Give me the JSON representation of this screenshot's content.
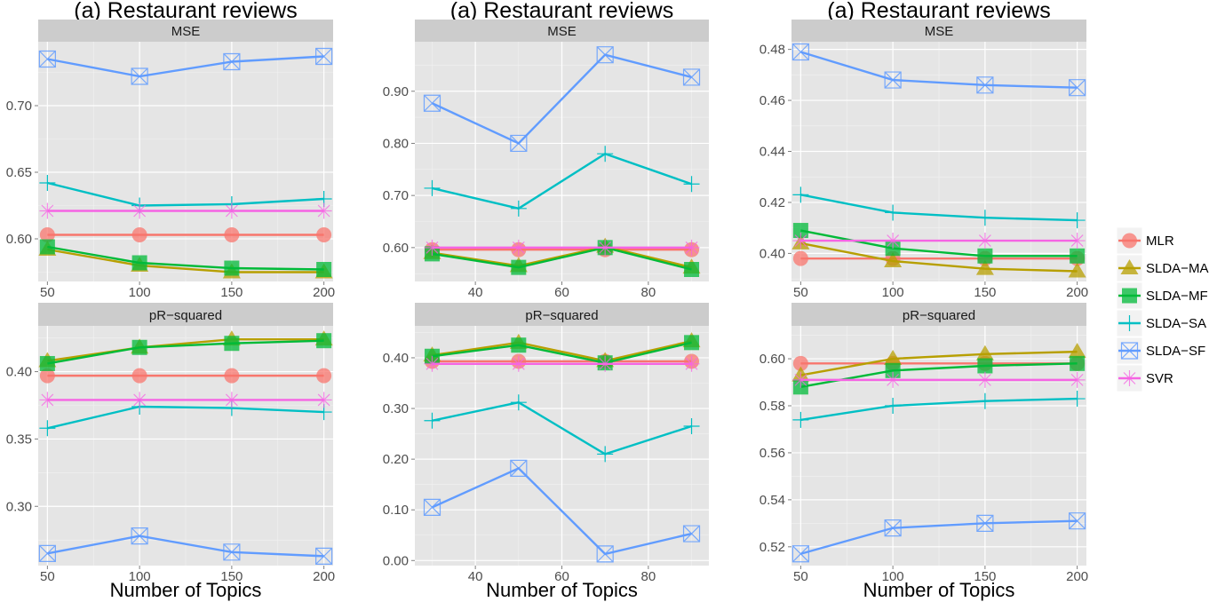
{
  "chart_data": [
    {
      "type": "line",
      "title": "(a) Restaurant reviews",
      "xlabel": "Number of Topics",
      "x": [
        50,
        100,
        150,
        200
      ],
      "xlim": [
        45,
        205
      ],
      "xticks": [
        50,
        100,
        150,
        200
      ],
      "panels": [
        {
          "strip": "MSE",
          "ylim": [
            0.568,
            0.748
          ],
          "yticks": [
            "0.60",
            "0.65",
            "0.70"
          ],
          "series": [
            {
              "name": "MLR",
              "values": [
                0.603,
                0.603,
                0.603,
                0.603
              ]
            },
            {
              "name": "SLDA−MA",
              "values": [
                0.592,
                0.58,
                0.575,
                0.575
              ]
            },
            {
              "name": "SLDA−MF",
              "values": [
                0.594,
                0.582,
                0.578,
                0.577
              ]
            },
            {
              "name": "SLDA−SA",
              "values": [
                0.642,
                0.625,
                0.626,
                0.63
              ]
            },
            {
              "name": "SLDA−SF",
              "values": [
                0.735,
                0.722,
                0.733,
                0.737
              ]
            },
            {
              "name": "SVR",
              "values": [
                0.621,
                0.621,
                0.621,
                0.621
              ]
            }
          ]
        },
        {
          "strip": "pR−squared",
          "ylim": [
            0.256,
            0.434
          ],
          "yticks": [
            "0.30",
            "0.35",
            "0.40"
          ],
          "series": [
            {
              "name": "MLR",
              "values": [
                0.397,
                0.397,
                0.397,
                0.397
              ]
            },
            {
              "name": "SLDA−MA",
              "values": [
                0.408,
                0.418,
                0.424,
                0.424
              ]
            },
            {
              "name": "SLDA−MF",
              "values": [
                0.406,
                0.418,
                0.421,
                0.423
              ]
            },
            {
              "name": "SLDA−SA",
              "values": [
                0.358,
                0.374,
                0.373,
                0.37
              ]
            },
            {
              "name": "SLDA−SF",
              "values": [
                0.265,
                0.278,
                0.266,
                0.263
              ]
            },
            {
              "name": "SVR",
              "values": [
                0.379,
                0.379,
                0.379,
                0.379
              ]
            }
          ]
        }
      ]
    },
    {
      "type": "line",
      "title": "(a) Restaurant reviews",
      "xlabel": "Number of Topics",
      "x": [
        30,
        50,
        70,
        90
      ],
      "xlim": [
        26,
        94
      ],
      "xticks": [
        40,
        60,
        80
      ],
      "panels": [
        {
          "strip": "MSE",
          "ylim": [
            0.535,
            0.995
          ],
          "yticks": [
            "0.60",
            "0.70",
            "0.80",
            "0.90"
          ],
          "series": [
            {
              "name": "MLR",
              "values": [
                0.596,
                0.596,
                0.596,
                0.596
              ]
            },
            {
              "name": "SLDA−MA",
              "values": [
                0.59,
                0.565,
                0.602,
                0.562
              ]
            },
            {
              "name": "SLDA−MF",
              "values": [
                0.588,
                0.562,
                0.6,
                0.558
              ]
            },
            {
              "name": "SLDA−SA",
              "values": [
                0.714,
                0.675,
                0.78,
                0.722
              ]
            },
            {
              "name": "SLDA−SF",
              "values": [
                0.877,
                0.8,
                0.97,
                0.927
              ]
            },
            {
              "name": "SVR",
              "values": [
                0.6,
                0.6,
                0.6,
                0.6
              ]
            }
          ]
        },
        {
          "strip": "pR−squared",
          "ylim": [
            -0.01,
            0.463
          ],
          "yticks": [
            "0.00",
            "0.10",
            "0.20",
            "0.30",
            "0.40"
          ],
          "series": [
            {
              "name": "MLR",
              "values": [
                0.393,
                0.393,
                0.393,
                0.393
              ]
            },
            {
              "name": "SLDA−MA",
              "values": [
                0.405,
                0.43,
                0.394,
                0.433
              ]
            },
            {
              "name": "SLDA−MF",
              "values": [
                0.403,
                0.425,
                0.39,
                0.43
              ]
            },
            {
              "name": "SLDA−SA",
              "values": [
                0.276,
                0.312,
                0.21,
                0.265
              ]
            },
            {
              "name": "SLDA−SF",
              "values": [
                0.105,
                0.182,
                0.013,
                0.053
              ]
            },
            {
              "name": "SVR",
              "values": [
                0.388,
                0.388,
                0.388,
                0.388
              ]
            }
          ]
        }
      ]
    },
    {
      "type": "line",
      "title": "(a) Restaurant reviews",
      "xlabel": "Number of Topics",
      "x": [
        50,
        100,
        150,
        200
      ],
      "xlim": [
        45,
        205
      ],
      "xticks": [
        50,
        100,
        150,
        200
      ],
      "panels": [
        {
          "strip": "MSE",
          "ylim": [
            0.389,
            0.483
          ],
          "yticks": [
            "0.40",
            "0.42",
            "0.44",
            "0.46",
            "0.48"
          ],
          "series": [
            {
              "name": "MLR",
              "values": [
                0.398,
                0.398,
                0.398,
                0.398
              ]
            },
            {
              "name": "SLDA−MA",
              "values": [
                0.404,
                0.397,
                0.394,
                0.393
              ]
            },
            {
              "name": "SLDA−MF",
              "values": [
                0.409,
                0.402,
                0.399,
                0.399
              ]
            },
            {
              "name": "SLDA−SA",
              "values": [
                0.423,
                0.416,
                0.414,
                0.413
              ]
            },
            {
              "name": "SLDA−SF",
              "values": [
                0.479,
                0.468,
                0.466,
                0.465
              ]
            },
            {
              "name": "SVR",
              "values": [
                0.405,
                0.405,
                0.405,
                0.405
              ]
            }
          ]
        },
        {
          "strip": "pR−squared",
          "ylim": [
            0.512,
            0.614
          ],
          "yticks": [
            "0.52",
            "0.54",
            "0.56",
            "0.58",
            "0.60"
          ],
          "series": [
            {
              "name": "MLR",
              "values": [
                0.598,
                0.598,
                0.598,
                0.598
              ]
            },
            {
              "name": "SLDA−MA",
              "values": [
                0.593,
                0.6,
                0.602,
                0.603
              ]
            },
            {
              "name": "SLDA−MF",
              "values": [
                0.588,
                0.595,
                0.597,
                0.598
              ]
            },
            {
              "name": "SLDA−SA",
              "values": [
                0.574,
                0.58,
                0.582,
                0.583
              ]
            },
            {
              "name": "SLDA−SF",
              "values": [
                0.517,
                0.528,
                0.53,
                0.531
              ]
            },
            {
              "name": "SVR",
              "values": [
                0.591,
                0.591,
                0.591,
                0.591
              ]
            }
          ]
        }
      ]
    }
  ],
  "legend": {
    "position": "right",
    "items": [
      {
        "name": "MLR",
        "color": "#F8766D",
        "shape": "circle"
      },
      {
        "name": "SLDA−MA",
        "color": "#B79F00",
        "shape": "triangle"
      },
      {
        "name": "SLDA−MF",
        "color": "#00BA38",
        "shape": "square"
      },
      {
        "name": "SLDA−SA",
        "color": "#00BFC4",
        "shape": "plus"
      },
      {
        "name": "SLDA−SF",
        "color": "#619CFF",
        "shape": "boxx"
      },
      {
        "name": "SVR",
        "color": "#F564E3",
        "shape": "star"
      }
    ]
  }
}
